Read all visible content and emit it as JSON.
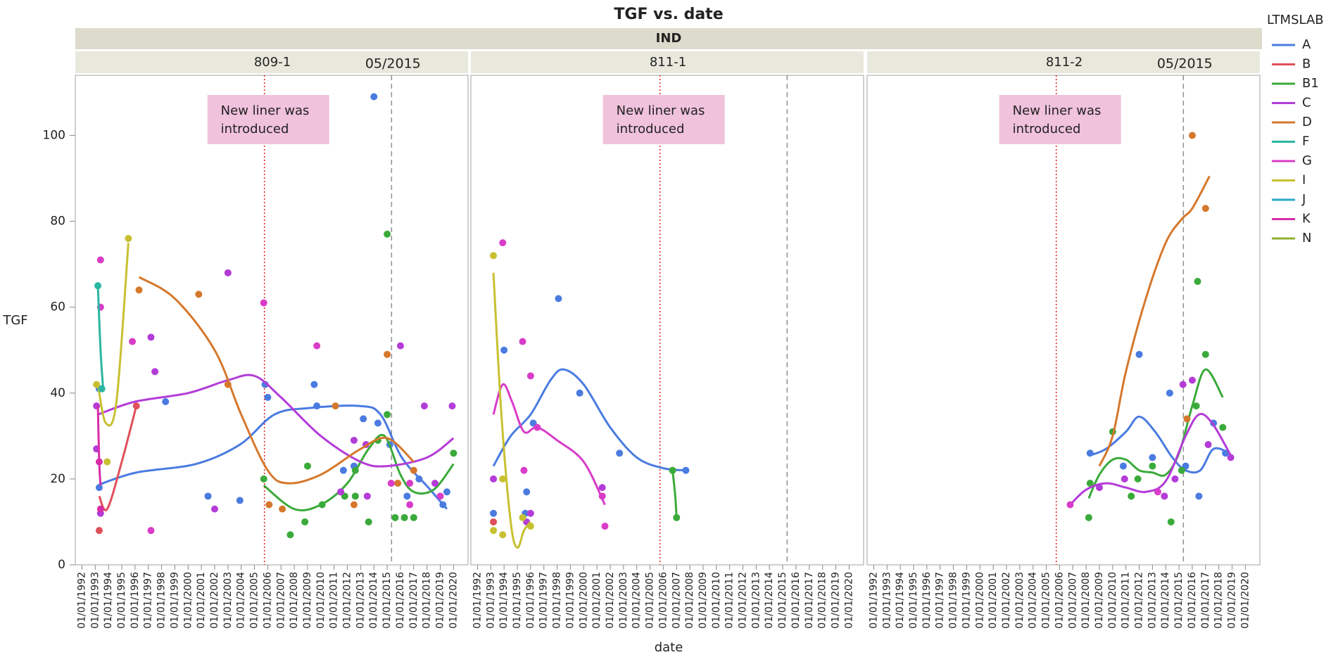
{
  "chart_data": {
    "type": "scatter",
    "title": "TGF vs. date",
    "group": "IND",
    "x_label": "date",
    "y_label": "TGF",
    "legend_title": "LTMSLAB",
    "legend_position": "right",
    "series": [
      {
        "name": "A",
        "color": "#4a7be0"
      },
      {
        "name": "B",
        "color": "#e0505a"
      },
      {
        "name": "B1",
        "color": "#3aaa3a"
      },
      {
        "name": "C",
        "color": "#b43cd8"
      },
      {
        "name": "D",
        "color": "#d5782c"
      },
      {
        "name": "F",
        "color": "#2ab6a0"
      },
      {
        "name": "G",
        "color": "#d83cc8"
      },
      {
        "name": "I",
        "color": "#c8c030"
      },
      {
        "name": "J",
        "color": "#2aa8c8"
      },
      {
        "name": "K",
        "color": "#d82ca8"
      },
      {
        "name": "N",
        "color": "#90b030"
      }
    ],
    "xlim": [
      1991.5,
      2021.2
    ],
    "xticks": [
      {
        "value": 1992,
        "label": "01/01/1992"
      },
      {
        "value": 1993,
        "label": "01/01/1993"
      },
      {
        "value": 1994,
        "label": "01/01/1994"
      },
      {
        "value": 1995,
        "label": "01/01/1995"
      },
      {
        "value": 1996,
        "label": "01/01/1996"
      },
      {
        "value": 1997,
        "label": "01/01/1997"
      },
      {
        "value": 1998,
        "label": "01/01/1998"
      },
      {
        "value": 1999,
        "label": "01/01/1999"
      },
      {
        "value": 2000,
        "label": "01/01/2000"
      },
      {
        "value": 2001,
        "label": "01/01/2001"
      },
      {
        "value": 2002,
        "label": "01/01/2002"
      },
      {
        "value": 2003,
        "label": "01/01/2003"
      },
      {
        "value": 2004,
        "label": "01/01/2004"
      },
      {
        "value": 2005,
        "label": "01/01/2005"
      },
      {
        "value": 2006,
        "label": "01/01/2006"
      },
      {
        "value": 2007,
        "label": "01/01/2007"
      },
      {
        "value": 2008,
        "label": "01/01/2008"
      },
      {
        "value": 2009,
        "label": "01/01/2009"
      },
      {
        "value": 2010,
        "label": "01/01/2010"
      },
      {
        "value": 2011,
        "label": "01/01/2011"
      },
      {
        "value": 2012,
        "label": "01/01/2012"
      },
      {
        "value": 2013,
        "label": "01/01/2013"
      },
      {
        "value": 2014,
        "label": "01/01/2014"
      },
      {
        "value": 2015,
        "label": "01/01/2015"
      },
      {
        "value": 2016,
        "label": "01/01/2016"
      },
      {
        "value": 2017,
        "label": "01/01/2017"
      },
      {
        "value": 2018,
        "label": "01/01/2018"
      },
      {
        "value": 2019,
        "label": "01/01/2019"
      },
      {
        "value": 2020,
        "label": "01/01/2020"
      }
    ],
    "ylim": [
      0,
      114
    ],
    "yticks": [
      0,
      20,
      40,
      60,
      80,
      100
    ],
    "liner_date": 2005.75,
    "ref_date": 2015.33,
    "panels": [
      {
        "name": "809-1",
        "ref_label": "05/2015",
        "annotation": [
          "New liner was",
          "introduced"
        ],
        "groups": [
          {
            "series": "A",
            "x": [
              1993.3,
              1993.3,
              1998.3,
              2001.5,
              2003.9,
              2005.8,
              2006,
              2009.5,
              2009.7,
              2011.7,
              2012.5,
              2013.2,
              2014,
              2014.3,
              2015.2,
              2016.5,
              2017.4,
              2019.5,
              2019.2
            ],
            "values": [
              41,
              18,
              38,
              16,
              15,
              42,
              39,
              42,
              37,
              22,
              23,
              34,
              109,
              33,
              28,
              16,
              20,
              17,
              14
            ],
            "fit_x": [
              1993.3,
              1996.1,
              2000.6,
              2003.9,
              2006.5,
              2009.1,
              2012.9,
              2014.5,
              2016.1,
              2018.1,
              2019.5
            ],
            "fit": [
              18.7,
              21.5,
              23.5,
              28,
              35,
              36.5,
              37,
              35,
              25,
              18,
              13
            ]
          },
          {
            "series": "B",
            "x": [
              1993.3,
              1996.1
            ],
            "values": [
              8,
              37
            ],
            "fit_x": [
              1993.3,
              1993.9,
              1995,
              1996.1
            ],
            "fit": [
              16,
              13,
              24,
              37
            ]
          },
          {
            "series": "B1",
            "x": [
              2005.7,
              2007.7,
              2008.8,
              2009,
              2010.1,
              2011.8,
              2012.6,
              2012.6,
              2013.6,
              2014.3,
              2015,
              2015,
              2015.6,
              2016.3,
              2017,
              2020
            ],
            "values": [
              20,
              7,
              10,
              23,
              14,
              16,
              22,
              16,
              10,
              29,
              77,
              35,
              11,
              11,
              11,
              26
            ],
            "fit_x": [
              2005.7,
              2008,
              2010,
              2012,
              2013.6,
              2014.8,
              2016,
              2017,
              2018.5,
              2020
            ],
            "fit": [
              18.5,
              13,
              14,
              19,
              27,
              30,
              21,
              17,
              17.5,
              23.5
            ]
          },
          {
            "series": "C",
            "x": [
              1993.1,
              1993.1,
              1993.4,
              1997.2,
              1997.5,
              2002,
              2003,
              2011.5,
              2012.5,
              2013.5,
              2013.4,
              2016,
              2017.8,
              2018.6,
              2019.9
            ],
            "values": [
              37,
              27,
              12,
              53,
              45,
              13,
              68,
              17,
              29,
              16,
              28,
              51,
              37,
              19,
              37
            ],
            "fit_x": [
              1993.2,
              1996,
              2000,
              2003,
              2005,
              2007,
              2010,
              2013,
              2015,
              2018,
              2020
            ],
            "fit": [
              35,
              38,
              40,
              43,
              44,
              39,
              30,
              24,
              23,
              25,
              29.5
            ]
          },
          {
            "series": "D",
            "x": [
              1996.3,
              2000.8,
              2003,
              2006.1,
              2007.1,
              2011.1,
              2012.5,
              2015,
              2015.8,
              2017
            ],
            "values": [
              64,
              63,
              42,
              14,
              13,
              37,
              14,
              49,
              19,
              22
            ],
            "fit_x": [
              1996.3,
              1999,
              2002,
              2004,
              2006,
              2007.5,
              2010,
              2013,
              2015,
              2017
            ],
            "fit": [
              67,
              62,
              50,
              35,
              22,
              19,
              21,
              27,
              29.5,
              24
            ]
          },
          {
            "series": "G",
            "x": [
              1993.4,
              1993.4,
              1995.8,
              1997.2,
              2005.7,
              2009.7,
              2015.3,
              2016.7,
              2016.7,
              2019
            ],
            "values": [
              71,
              60,
              52,
              8,
              61,
              51,
              19,
              19,
              14,
              16
            ]
          },
          {
            "series": "I",
            "x": [
              1993.1,
              1993.9,
              1995.5
            ],
            "values": [
              42,
              24,
              76
            ],
            "fit_x": [
              1993.2,
              1993.8,
              1994.6,
              1995.5
            ],
            "fit": [
              42,
              33,
              38,
              75
            ]
          },
          {
            "series": "F",
            "x": [
              1993.2,
              1993.5
            ],
            "values": [
              65,
              41
            ],
            "fit_x": [
              1993.2,
              1993.4,
              1993.6
            ],
            "fit": [
              65,
              50,
              41
            ]
          },
          {
            "series": "K",
            "x": [
              1993.3,
              1993.4
            ],
            "values": [
              24,
              13
            ],
            "fit_x": [
              1993.2,
              1993.3,
              1993.4
            ],
            "fit": [
              37,
              24,
              18.5
            ]
          }
        ]
      },
      {
        "name": "811-1",
        "annotation": [
          "New liner was",
          "introduced"
        ],
        "groups": [
          {
            "series": "A",
            "x": [
              1993.2,
              1994,
              1995.7,
              1995.6,
              1996.2,
              1998.1,
              1999.7,
              2002.7,
              2007.7
            ],
            "values": [
              12,
              50,
              17,
              12,
              33,
              62,
              40,
              26,
              22
            ],
            "fit_x": [
              1993.2,
              1994.5,
              1996,
              1997.5,
              1998.5,
              2000,
              2002,
              2004,
              2006,
              2007.7
            ],
            "fit": [
              23,
              30,
              35,
              43,
              45.5,
              42,
              32,
              25,
              22.5,
              22
            ]
          },
          {
            "series": "B",
            "x": [
              1993.2
            ],
            "values": [
              10
            ]
          },
          {
            "series": "B1",
            "x": [
              2006.7,
              2007
            ],
            "values": [
              22,
              11
            ],
            "fit_x": [
              2006.7,
              2006.9,
              2007
            ],
            "fit": [
              22,
              16,
              11
            ]
          },
          {
            "series": "C",
            "x": [
              1993.2,
              1995.7,
              1996,
              2001.4
            ],
            "values": [
              20,
              10,
              12,
              18
            ]
          },
          {
            "series": "G",
            "x": [
              1993.9,
              1995.4,
              1996,
              1996.5,
              1995.5,
              2001.4,
              2001.6
            ],
            "values": [
              75,
              52,
              44,
              32,
              22,
              16,
              9
            ],
            "fit_x": [
              1993.2,
              1993.9,
              1994.6,
              1995.5,
              1996.5,
              1998,
              2000,
              2001.6
            ],
            "fit": [
              35,
              42,
              38,
              31,
              32,
              29,
              24,
              14
            ]
          },
          {
            "series": "I",
            "x": [
              1993.2,
              1993.9,
              1993.9,
              1993.2,
              1995.4,
              1996
            ],
            "values": [
              72,
              20,
              7,
              8,
              11,
              9
            ],
            "fit_x": [
              1993.2,
              1993.8,
              1994.5,
              1995,
              1995.5,
              1996
            ],
            "fit": [
              68,
              35,
              10,
              4,
              8,
              10
            ]
          }
        ]
      },
      {
        "name": "811-2",
        "ref_label": "05/2015",
        "annotation": [
          "New liner was",
          "introduced"
        ],
        "groups": [
          {
            "series": "A",
            "x": [
              2008.3,
              2010.8,
              2012,
              2013,
              2014.3,
              2015.5,
              2016.5,
              2017.6,
              2018.5
            ],
            "values": [
              26,
              23,
              49,
              25,
              40,
              23,
              16,
              33,
              26
            ],
            "fit_x": [
              2008.3,
              2009.5,
              2011,
              2012,
              2013.2,
              2014.5,
              2015.5,
              2016.6,
              2017.6,
              2018.8
            ],
            "fit": [
              25.5,
              27,
              31,
              34.5,
              31,
              25,
              22,
              22,
              27,
              26
            ]
          },
          {
            "series": "B1",
            "x": [
              2008.2,
              2008.3,
              2010,
              2011.4,
              2011.9,
              2013,
              2014.4,
              2015.2,
              2016.3,
              2016.4,
              2017,
              2018.3
            ],
            "values": [
              11,
              19,
              31,
              16,
              20,
              23,
              10,
              22,
              37,
              66,
              49,
              32
            ],
            "fit_x": [
              2008.2,
              2009,
              2010,
              2011,
              2012,
              2013,
              2014,
              2015,
              2016,
              2017,
              2018.3
            ],
            "fit": [
              15.5,
              21,
              24.5,
              24.5,
              22,
              21.5,
              21,
              26,
              37,
              45.5,
              39
            ]
          },
          {
            "series": "C",
            "x": [
              2009,
              2010.9,
              2013.9,
              2014.7,
              2015.3,
              2016,
              2017.2,
              2018.9
            ],
            "values": [
              18,
              20,
              16,
              20,
              42,
              43,
              28,
              25
            ],
            "fit_x": [
              2006.8,
              2008,
              2009.5,
              2011,
              2012.5,
              2014,
              2015.5,
              2016.5,
              2017.5,
              2018.9
            ],
            "fit": [
              14,
              17.5,
              19,
              18,
              17,
              19.5,
              30,
              35,
              33,
              25.5
            ]
          },
          {
            "series": "D",
            "x": [
              2016,
              2017,
              2015.6
            ],
            "values": [
              100,
              83,
              34
            ],
            "fit_x": [
              2009,
              2010,
              2011,
              2012.5,
              2014,
              2015.2,
              2016,
              2017.3
            ],
            "fit": [
              23,
              30,
              45,
              62,
              75,
              80.5,
              83,
              90.5
            ]
          },
          {
            "series": "G",
            "x": [
              2006.8,
              2013.4
            ],
            "values": [
              14,
              17
            ]
          }
        ]
      }
    ]
  }
}
